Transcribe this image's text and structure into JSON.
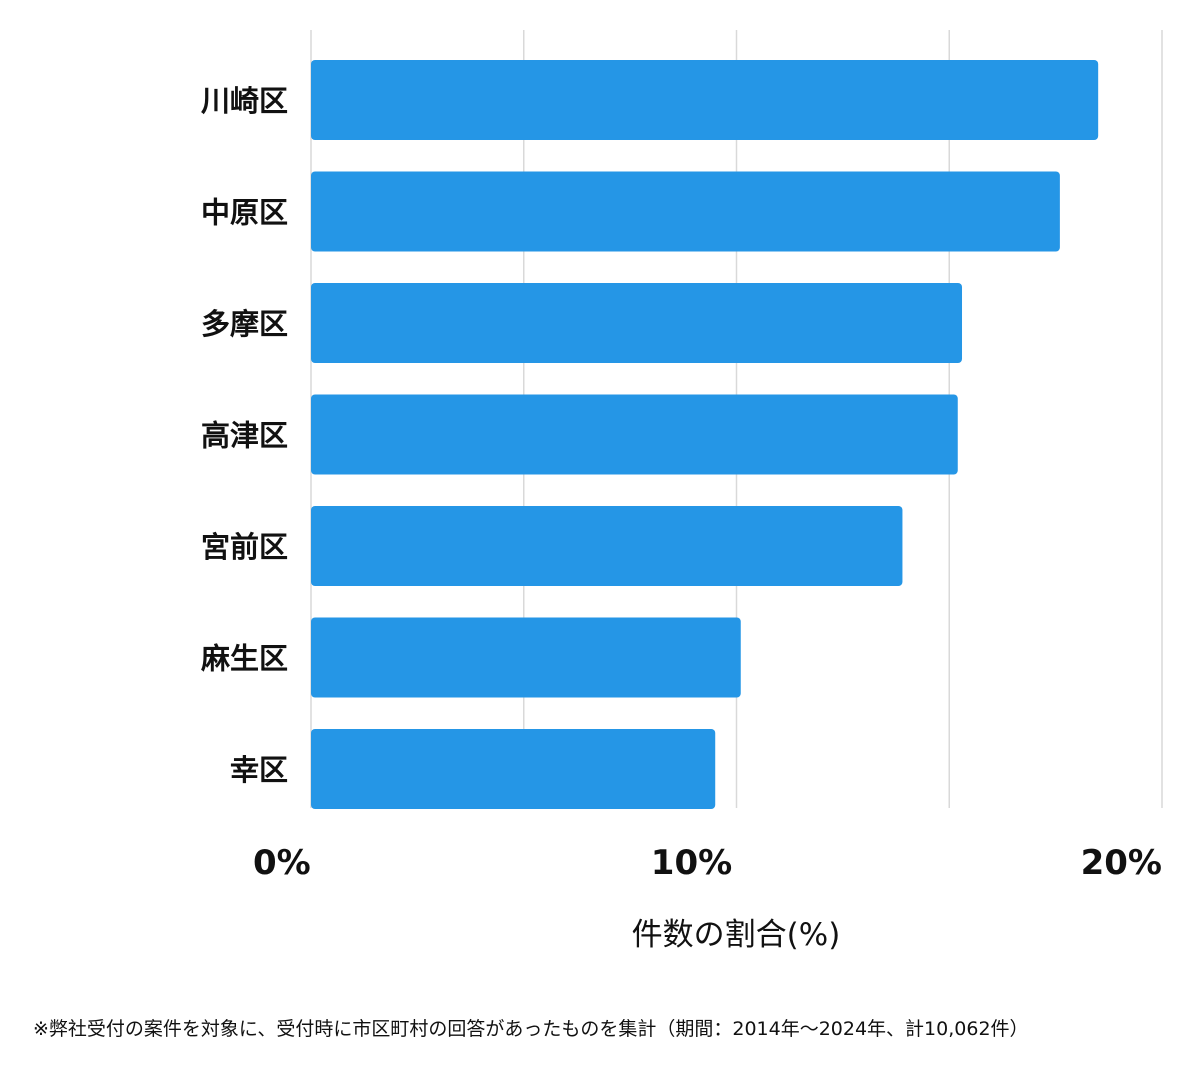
{
  "chart_data": {
    "type": "bar",
    "orientation": "horizontal",
    "categories": [
      "川崎区",
      "中原区",
      "多摩区",
      "高津区",
      "宮前区",
      "麻生区",
      "幸区"
    ],
    "values": [
      18.5,
      17.6,
      15.3,
      15.2,
      13.9,
      10.1,
      9.5
    ],
    "xlabel": "件数の割合(%)",
    "xlim": [
      0,
      20
    ],
    "tick_values": [
      0,
      10,
      20
    ],
    "tick_labels": [
      "0%",
      "10%",
      "20%"
    ],
    "grid": true,
    "bar_color": "#2596e6",
    "grid_color": "#d9d9d9"
  },
  "footnote": "※弊社受付の案件を対象に、受付時に市区町村の回答があったものを集計（期間：2014年〜2024年、計10,062件）"
}
